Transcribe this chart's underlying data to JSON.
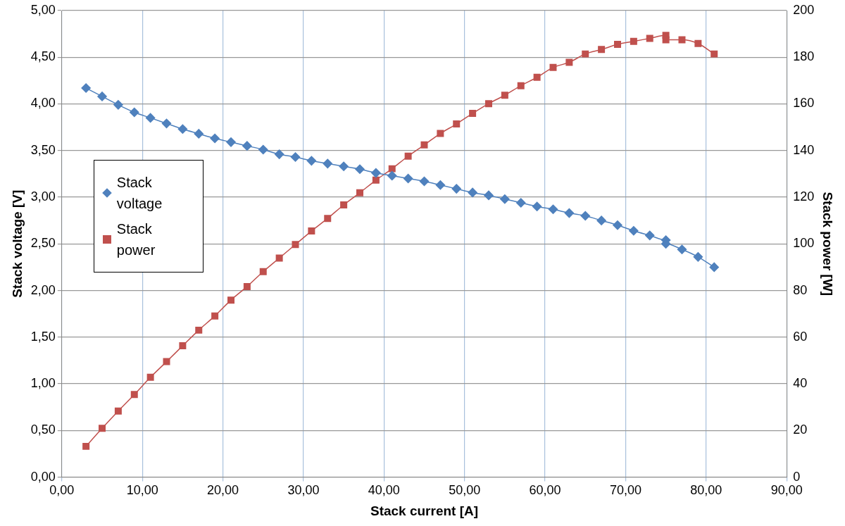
{
  "chart_data": {
    "type": "line",
    "xlabel": "Stack current [A]",
    "ylabel": "Stack voltage [V]",
    "y2label": "Stack power [W]",
    "xlim": [
      0,
      90
    ],
    "xticks": [
      {
        "value": 0,
        "label": "0,00"
      },
      {
        "value": 10,
        "label": "10,00"
      },
      {
        "value": 20,
        "label": "20,00"
      },
      {
        "value": 30,
        "label": "30,00"
      },
      {
        "value": 40,
        "label": "40,00"
      },
      {
        "value": 50,
        "label": "50,00"
      },
      {
        "value": 60,
        "label": "60,00"
      },
      {
        "value": 70,
        "label": "70,00"
      },
      {
        "value": 80,
        "label": "80,00"
      },
      {
        "value": 90,
        "label": "90,00"
      }
    ],
    "ylim": [
      0,
      5
    ],
    "yticks": [
      {
        "value": 0,
        "label": "0,00"
      },
      {
        "value": 0.5,
        "label": "0,50"
      },
      {
        "value": 1,
        "label": "1,00"
      },
      {
        "value": 1.5,
        "label": "1,50"
      },
      {
        "value": 2,
        "label": "2,00"
      },
      {
        "value": 2.5,
        "label": "2,50"
      },
      {
        "value": 3,
        "label": "3,00"
      },
      {
        "value": 3.5,
        "label": "3,50"
      },
      {
        "value": 4,
        "label": "4,00"
      },
      {
        "value": 4.5,
        "label": "4,50"
      },
      {
        "value": 5,
        "label": "5,00"
      }
    ],
    "y2lim": [
      0,
      200
    ],
    "y2ticks": [
      0,
      20,
      40,
      60,
      80,
      100,
      120,
      140,
      160,
      180,
      200
    ],
    "grid": true,
    "legend": "left",
    "line_style": "solid",
    "series": [
      {
        "name": "Stack voltage",
        "color": "#4f81bd",
        "marker": "diamond",
        "x": [
          3,
          5,
          7,
          9,
          11,
          13,
          15,
          17,
          19,
          21,
          23,
          25,
          27,
          29,
          31,
          33,
          35,
          37,
          39,
          41,
          43,
          45,
          47,
          49,
          51,
          53,
          55,
          57,
          59,
          61,
          63,
          65,
          67,
          69,
          71,
          73,
          75,
          75,
          77,
          79,
          81
        ],
        "values": [
          4.17,
          4.08,
          3.99,
          3.91,
          3.85,
          3.79,
          3.73,
          3.68,
          3.63,
          3.59,
          3.55,
          3.51,
          3.46,
          3.43,
          3.39,
          3.36,
          3.33,
          3.3,
          3.26,
          3.23,
          3.2,
          3.17,
          3.13,
          3.09,
          3.05,
          3.02,
          2.98,
          2.94,
          2.9,
          2.87,
          2.83,
          2.8,
          2.75,
          2.7,
          2.64,
          2.59,
          2.54,
          2.5,
          2.44,
          2.36,
          2.25
        ]
      },
      {
        "name": "Stack power",
        "color": "#c0504d",
        "marker": "square",
        "axis": "y2",
        "x": [
          3,
          5,
          7,
          9,
          11,
          13,
          15,
          17,
          19,
          21,
          23,
          25,
          27,
          29,
          31,
          33,
          35,
          37,
          39,
          41,
          43,
          45,
          47,
          49,
          51,
          53,
          55,
          57,
          59,
          61,
          63,
          65,
          67,
          69,
          71,
          73,
          75,
          75,
          77,
          79,
          81
        ],
        "values": [
          13.2,
          20.9,
          28.3,
          35.4,
          42.8,
          49.5,
          56.3,
          63,
          69.1,
          75.9,
          81.7,
          88.1,
          93.9,
          99.7,
          105.5,
          110.9,
          116.7,
          121.9,
          127.3,
          132.2,
          137.6,
          142.4,
          147.3,
          151.4,
          155.9,
          160.1,
          163.7,
          167.8,
          171.4,
          175.6,
          177.8,
          181.4,
          183.3,
          185.5,
          186.8,
          188.1,
          189.4,
          187.5,
          187.5,
          185.9,
          181.4
        ]
      }
    ]
  }
}
